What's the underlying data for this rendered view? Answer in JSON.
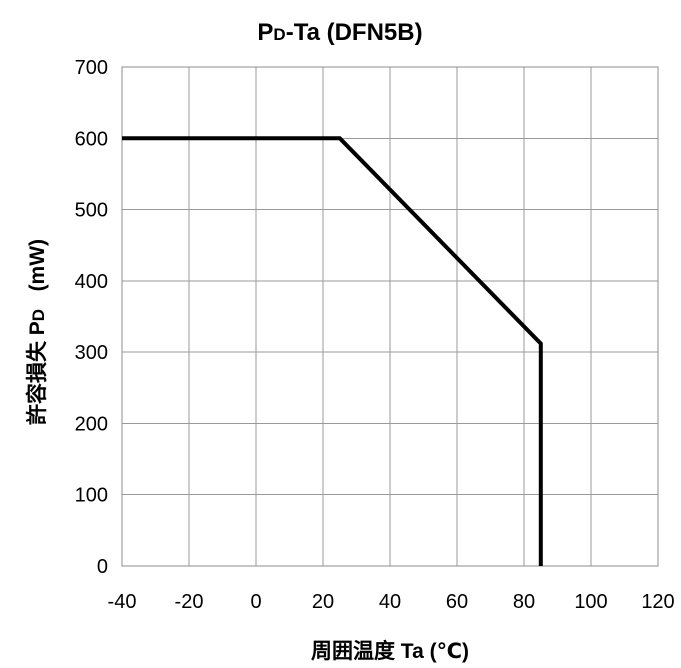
{
  "chart_data": {
    "type": "line",
    "title": "PD-Ta (DFN5B)",
    "title_parts": {
      "main_initial": "P",
      "subscript": "D",
      "rest": "-Ta (DFN5B)"
    },
    "xlabel": "周囲温度  Ta (℃)",
    "ylabel": "許容損失  PD   (mW)",
    "ylabel_parts": {
      "prefix": "許容損失  P",
      "subscript": "D",
      "suffix": "   (mW)"
    },
    "xlim": [
      -40,
      120
    ],
    "ylim": [
      0,
      700
    ],
    "x_ticks": [
      "-40",
      "-20",
      "0",
      "20",
      "40",
      "60",
      "80",
      "100",
      "120"
    ],
    "y_ticks": [
      "0",
      "100",
      "200",
      "300",
      "400",
      "500",
      "600",
      "700"
    ],
    "grid": true,
    "legend": "none",
    "series": [
      {
        "color": "#000000",
        "x": [
          -40,
          25,
          85,
          85
        ],
        "y": [
          600,
          600,
          312,
          0
        ]
      }
    ]
  }
}
